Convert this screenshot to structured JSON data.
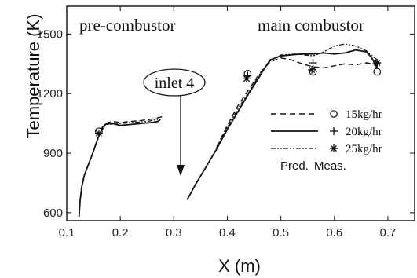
{
  "chart_data": {
    "type": "line",
    "xlabel": "X (m)",
    "ylabel": "Temperature (K)",
    "xlim": [
      0.1,
      0.75
    ],
    "ylim": [
      560,
      1640
    ],
    "x_ticks": [
      "0.1",
      "0.2",
      "0.3",
      "0.4",
      "0.5",
      "0.6",
      "0.7"
    ],
    "y_ticks": [
      "600",
      "900",
      "1200",
      "1500"
    ],
    "x_tick_values": [
      0.1,
      0.2,
      0.3,
      0.4,
      0.5,
      0.6,
      0.7
    ],
    "y_tick_values": [
      600,
      900,
      1200,
      1500
    ],
    "annotations": {
      "pre_combustor": "pre-combustor",
      "main_combustor": "main combustor",
      "inlet": "inlet 4"
    },
    "legend": {
      "entries": [
        "15kg/hr",
        "20kg/hr",
        "25kg/hr"
      ],
      "pred_label": "Pred.",
      "meas_label": "Meas."
    },
    "predicted_series": [
      {
        "name": "15kg/hr",
        "style": "dashed",
        "segments": [
          [
            [
              0.163,
              1015
            ],
            [
              0.172,
              1050
            ],
            [
              0.185,
              1060
            ],
            [
              0.2,
              1055
            ],
            [
              0.22,
              1060
            ],
            [
              0.24,
              1065
            ],
            [
              0.26,
              1072
            ],
            [
              0.28,
              1085
            ]
          ],
          [
            [
              0.38,
              930
            ],
            [
              0.4,
              1040
            ],
            [
              0.42,
              1140
            ],
            [
              0.44,
              1220
            ],
            [
              0.46,
              1300
            ],
            [
              0.48,
              1360
            ],
            [
              0.5,
              1380
            ],
            [
              0.52,
              1370
            ],
            [
              0.54,
              1350
            ],
            [
              0.56,
              1335
            ],
            [
              0.58,
              1330
            ],
            [
              0.6,
              1340
            ],
            [
              0.62,
              1350
            ],
            [
              0.64,
              1345
            ],
            [
              0.66,
              1355
            ],
            [
              0.68,
              1345
            ]
          ]
        ]
      },
      {
        "name": "20kg/hr",
        "style": "solid",
        "segments": [
          [
            [
              0.123,
              580
            ],
            [
              0.125,
              660
            ],
            [
              0.128,
              730
            ],
            [
              0.133,
              790
            ],
            [
              0.14,
              840
            ],
            [
              0.148,
              895
            ],
            [
              0.155,
              950
            ],
            [
              0.165,
              1025
            ],
            [
              0.172,
              1045
            ],
            [
              0.185,
              1050
            ],
            [
              0.2,
              1040
            ],
            [
              0.22,
              1045
            ],
            [
              0.24,
              1050
            ],
            [
              0.26,
              1055
            ],
            [
              0.27,
              1060
            ],
            [
              0.275,
              1070
            ]
          ],
          [
            [
              0.325,
              665
            ],
            [
              0.34,
              740
            ],
            [
              0.36,
              830
            ],
            [
              0.38,
              920
            ],
            [
              0.4,
              1020
            ],
            [
              0.42,
              1110
            ],
            [
              0.44,
              1200
            ],
            [
              0.46,
              1285
            ],
            [
              0.47,
              1330
            ],
            [
              0.48,
              1370
            ],
            [
              0.5,
              1390
            ],
            [
              0.52,
              1395
            ],
            [
              0.54,
              1400
            ],
            [
              0.56,
              1400
            ],
            [
              0.58,
              1405
            ],
            [
              0.6,
              1400
            ],
            [
              0.62,
              1405
            ],
            [
              0.64,
              1420
            ],
            [
              0.66,
              1410
            ],
            [
              0.67,
              1380
            ],
            [
              0.68,
              1330
            ]
          ]
        ]
      },
      {
        "name": "25kg/hr",
        "style": "dash-dot",
        "segments": [
          [
            [
              0.163,
              1010
            ],
            [
              0.175,
              1045
            ],
            [
              0.2,
              1050
            ],
            [
              0.25,
              1060
            ],
            [
              0.27,
              1070
            ]
          ],
          [
            [
              0.38,
              925
            ],
            [
              0.4,
              1030
            ],
            [
              0.42,
              1125
            ],
            [
              0.44,
              1205
            ],
            [
              0.46,
              1295
            ],
            [
              0.48,
              1365
            ],
            [
              0.5,
              1395
            ],
            [
              0.53,
              1400
            ],
            [
              0.56,
              1390
            ],
            [
              0.58,
              1410
            ],
            [
              0.6,
              1440
            ],
            [
              0.62,
              1450
            ],
            [
              0.64,
              1440
            ],
            [
              0.66,
              1415
            ],
            [
              0.68,
              1370
            ]
          ]
        ]
      }
    ],
    "measured_series": [
      {
        "name": "15kg/hr",
        "marker": "circle",
        "points": [
          [
            0.16,
            1010
          ],
          [
            0.438,
            1300
          ],
          [
            0.56,
            1310
          ],
          [
            0.68,
            1310
          ]
        ]
      },
      {
        "name": "20kg/hr",
        "marker": "plus",
        "points": [
          [
            0.438,
            1290
          ],
          [
            0.56,
            1355
          ],
          [
            0.678,
            1350
          ]
        ]
      },
      {
        "name": "25kg/hr",
        "marker": "asterisk",
        "points": [
          [
            0.16,
            1000
          ],
          [
            0.436,
            1275
          ],
          [
            0.558,
            1320
          ],
          [
            0.68,
            1355
          ]
        ]
      }
    ]
  }
}
